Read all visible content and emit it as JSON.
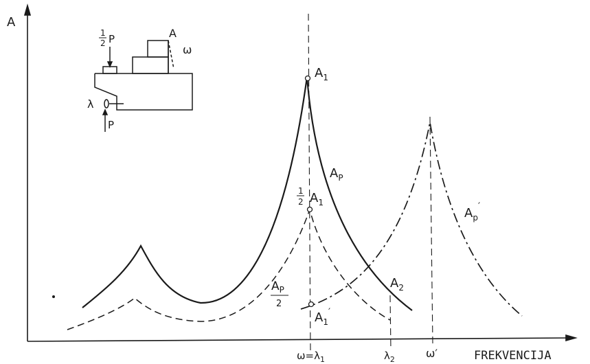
{
  "axis": {
    "y_label": "A",
    "x_label": "FREKVENCIJA"
  },
  "peaks": {
    "main": "A",
    "main_sub": "1",
    "half_frac_num": "1",
    "half_frac_den": "2",
    "half": "A",
    "half_sub": "1",
    "shifted": "A",
    "shifted_sub": "1",
    "shifted_prime": "′",
    "a2": "A",
    "a2_sub": "2"
  },
  "curves": {
    "ap": "A",
    "ap_sub": "P",
    "ap_half": "A",
    "ap_half_sub": "P",
    "ap_half_den": "2",
    "ap_prime": "A",
    "ap_prime_sub": "p",
    "ap_prime_mark": "′"
  },
  "x_ticks": {
    "omega_lambda1": "ω=λ",
    "omega_lambda1_sub": "1",
    "lambda2": "λ",
    "lambda2_sub": "2",
    "omega_prime": "ω′"
  },
  "inset": {
    "half_num": "1",
    "half_den": "2",
    "half_P": "P",
    "A": "A",
    "omega": "ω",
    "lambda": "λ",
    "P": "P"
  },
  "colors": {
    "ink": "#1a1a1a"
  }
}
